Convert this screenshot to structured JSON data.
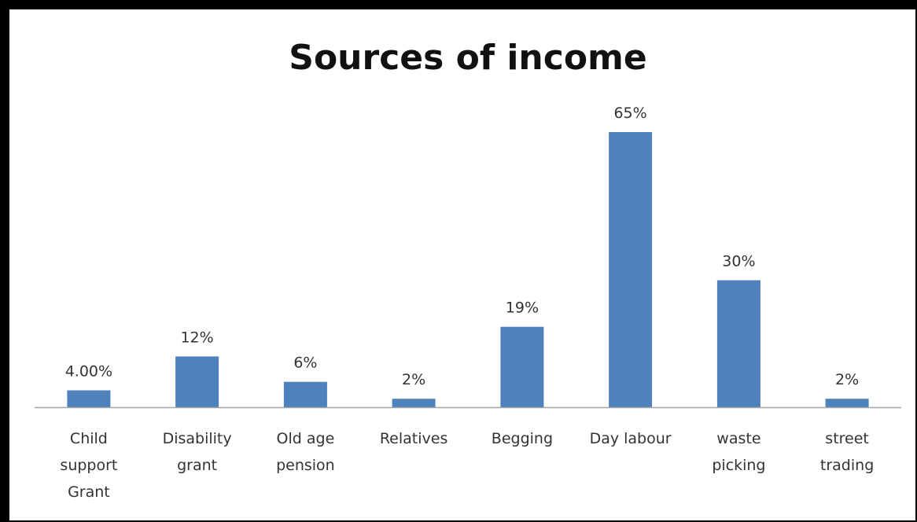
{
  "chart_data": {
    "type": "bar",
    "title": "Sources of income",
    "categories": [
      [
        "Child",
        "support",
        "Grant"
      ],
      [
        "Disability",
        "grant"
      ],
      [
        "Old age",
        "pension"
      ],
      [
        "Relatives"
      ],
      [
        "Begging"
      ],
      [
        "Day labour"
      ],
      [
        "waste",
        "picking"
      ],
      [
        "street",
        "trading"
      ]
    ],
    "values": [
      4,
      12,
      6,
      2,
      19,
      65,
      30,
      2
    ],
    "value_labels": [
      "4.00%",
      "12%",
      "6%",
      "2%",
      "19%",
      "65%",
      "30%",
      "2%"
    ],
    "xlabel": "",
    "ylabel": "",
    "y_axis_visible": false,
    "grid": false,
    "legend": "none",
    "bar_color": "#4F81BD",
    "axis_color": "#A6A6A6"
  }
}
